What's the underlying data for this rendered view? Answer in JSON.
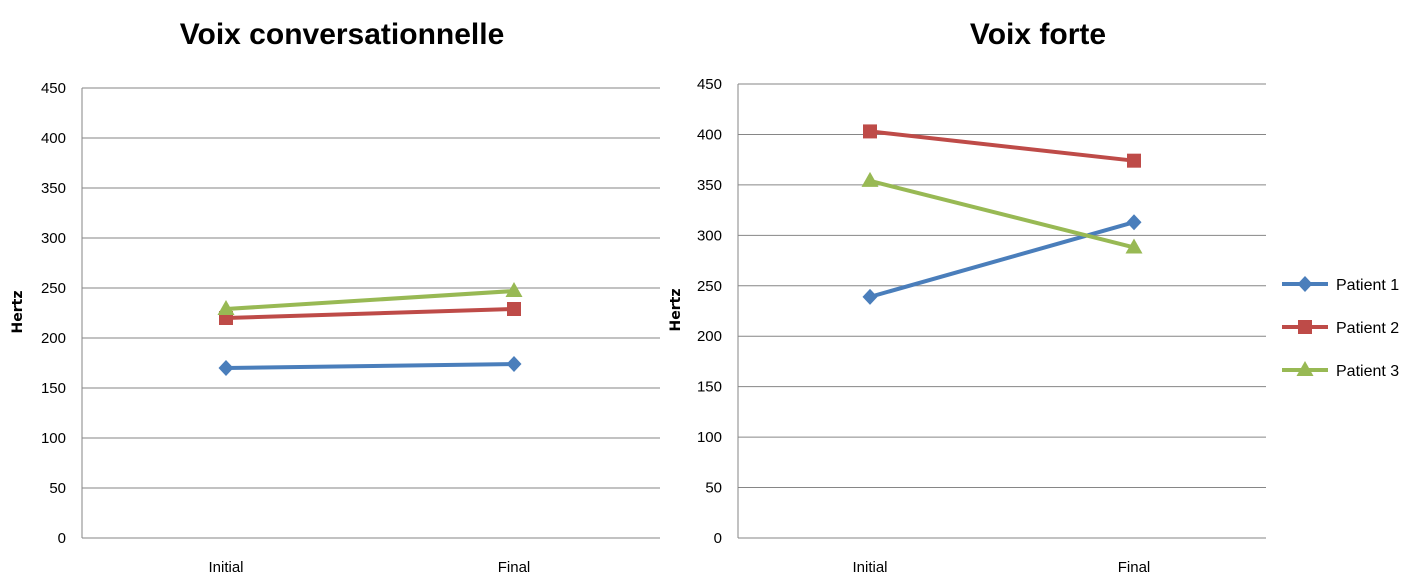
{
  "chart_data": [
    {
      "type": "line",
      "title": "Voix conversationnelle",
      "xlabel": "",
      "ylabel": "Hertz",
      "categories": [
        "Initial",
        "Final"
      ],
      "ylim": [
        0,
        450
      ],
      "yticks": [
        0,
        50,
        100,
        150,
        200,
        250,
        300,
        350,
        400,
        450
      ],
      "grid": true,
      "series": [
        {
          "name": "Patient 1",
          "values": [
            170,
            174
          ],
          "color": "#4A7EBB",
          "marker": "diamond"
        },
        {
          "name": "Patient 2",
          "values": [
            220,
            229
          ],
          "color": "#BE4B48",
          "marker": "square"
        },
        {
          "name": "Patient 3",
          "values": [
            229,
            247
          ],
          "color": "#98B954",
          "marker": "triangle"
        }
      ]
    },
    {
      "type": "line",
      "title": "Voix forte",
      "xlabel": "",
      "ylabel": "Hertz",
      "categories": [
        "Initial",
        "Final"
      ],
      "ylim": [
        0,
        450
      ],
      "yticks": [
        0,
        50,
        100,
        150,
        200,
        250,
        300,
        350,
        400,
        450
      ],
      "grid": true,
      "legend": "right",
      "series": [
        {
          "name": "Patient 1",
          "values": [
            239,
            313
          ],
          "color": "#4A7EBB",
          "marker": "diamond"
        },
        {
          "name": "Patient 2",
          "values": [
            403,
            374
          ],
          "color": "#BE4B48",
          "marker": "square"
        },
        {
          "name": "Patient 3",
          "values": [
            354,
            288
          ],
          "color": "#98B954",
          "marker": "triangle"
        }
      ]
    }
  ],
  "legend": {
    "items": [
      {
        "label": "Patient 1",
        "color": "#4A7EBB",
        "marker": "diamond"
      },
      {
        "label": "Patient 2",
        "color": "#BE4B48",
        "marker": "square"
      },
      {
        "label": "Patient 3",
        "color": "#98B954",
        "marker": "triangle"
      }
    ]
  }
}
